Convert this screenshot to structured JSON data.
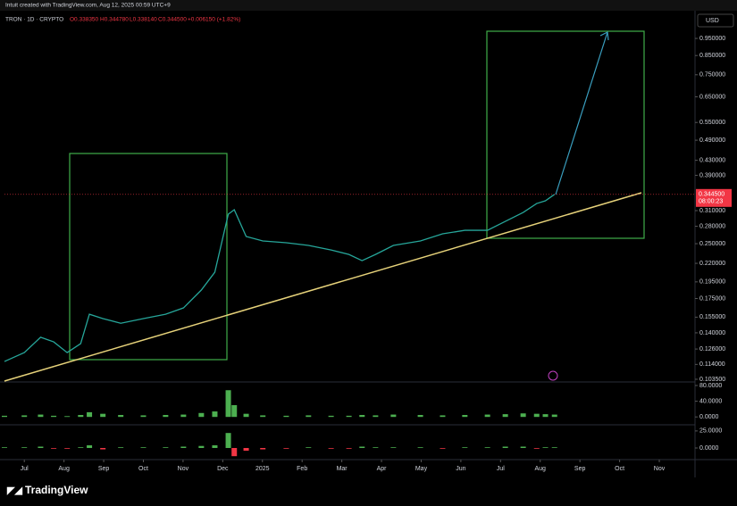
{
  "header": "Intuit created with TradingView.com, Aug 12, 2025 00:59 UTC+9",
  "legend": {
    "symbol": "TRON · 1D · CRYPTO",
    "open": "O0.338350",
    "high": "H0.344780",
    "low": "L0.338140",
    "close": "C0.344500",
    "change": "+0.006150 (+1.82%)"
  },
  "currency": "USD",
  "countdown": "08:00:23",
  "brand": "TradingView",
  "chart_data": [
    {
      "type": "line",
      "color": "#26a69a",
      "log_scale": true,
      "x": [
        -0.5,
        0,
        0.41,
        0.74,
        1.08,
        1.42,
        1.64,
        1.98,
        2.43,
        3.0,
        3.56,
        4.01,
        4.46,
        4.8,
        5.14,
        5.29,
        5.59,
        6.01,
        6.6,
        7.16,
        7.73,
        8.18,
        8.51,
        8.85,
        9.3,
        9.98,
        10.54,
        11.1,
        11.67,
        12.12,
        12.57,
        12.91,
        13.13,
        13.36
      ],
      "values": [
        0.1162,
        0.1231,
        0.136,
        0.132,
        0.1231,
        0.1305,
        0.158,
        0.1536,
        0.149,
        0.1536,
        0.158,
        0.1646,
        0.1849,
        0.2076,
        0.3029,
        0.3118,
        0.262,
        0.2545,
        0.2515,
        0.2472,
        0.24,
        0.2331,
        0.2239,
        0.2331,
        0.2472,
        0.2545,
        0.2665,
        0.2727,
        0.2727,
        0.289,
        0.3063,
        0.3246,
        0.3304,
        0.3445
      ],
      "last_price": {
        "value": 0.3445,
        "label": "0.344500"
      },
      "xlim": [
        -0.5,
        16.9
      ],
      "xticks": [
        {
          "value": 0,
          "label": "Jul"
        },
        {
          "value": 1,
          "label": "Aug"
        },
        {
          "value": 2,
          "label": "Sep"
        },
        {
          "value": 3,
          "label": "Oct"
        },
        {
          "value": 4,
          "label": "Nov"
        },
        {
          "value": 5,
          "label": "Dec"
        },
        {
          "value": 6,
          "label": "2025"
        },
        {
          "value": 7,
          "label": "Feb"
        },
        {
          "value": 8,
          "label": "Mar"
        },
        {
          "value": 9,
          "label": "Apr"
        },
        {
          "value": 10,
          "label": "May"
        },
        {
          "value": 11,
          "label": "Jun"
        },
        {
          "value": 12,
          "label": "Jul"
        },
        {
          "value": 13,
          "label": "Aug"
        },
        {
          "value": 14,
          "label": "Sep"
        },
        {
          "value": 15,
          "label": "Oct"
        },
        {
          "value": 16,
          "label": "Nov"
        }
      ],
      "ylim": [
        0.1017,
        1.118
      ],
      "yticks": [
        {
          "value": 0.95,
          "label": "0.950000"
        },
        {
          "value": 0.85,
          "label": "0.850000"
        },
        {
          "value": 0.75,
          "label": "0.750000"
        },
        {
          "value": 0.65,
          "label": "0.650000"
        },
        {
          "value": 0.55,
          "label": "0.550000"
        },
        {
          "value": 0.49,
          "label": "0.490000"
        },
        {
          "value": 0.43,
          "label": "0.430000"
        },
        {
          "value": 0.39,
          "label": "0.390000"
        },
        {
          "value": 0.31,
          "label": "0.310000"
        },
        {
          "value": 0.28,
          "label": "0.280000"
        },
        {
          "value": 0.25,
          "label": "0.250000"
        },
        {
          "value": 0.22,
          "label": "0.220000"
        },
        {
          "value": 0.195,
          "label": "0.195000"
        },
        {
          "value": 0.175,
          "label": "0.175000"
        },
        {
          "value": 0.155,
          "label": "0.155000"
        },
        {
          "value": 0.14,
          "label": "0.140000"
        },
        {
          "value": 0.126,
          "label": "0.126000"
        },
        {
          "value": 0.114,
          "label": "0.114000"
        },
        {
          "value": 0.1035,
          "label": "0.103500"
        }
      ]
    },
    {
      "type": "bar",
      "up_color": "#4caf50",
      "down_color": "#f23645",
      "x": [
        -0.5,
        0,
        0.41,
        0.74,
        1.08,
        1.42,
        1.64,
        1.98,
        2.43,
        3.0,
        3.56,
        4.01,
        4.46,
        4.8,
        5.14,
        5.29,
        5.59,
        6.01,
        6.6,
        7.16,
        7.73,
        8.18,
        8.51,
        8.85,
        9.3,
        9.98,
        10.54,
        11.1,
        11.67,
        12.12,
        12.57,
        12.91,
        13.13,
        13.36
      ],
      "values": [
        3,
        4,
        6,
        3,
        2,
        5,
        12,
        8,
        5,
        4,
        5,
        6,
        10,
        14,
        68,
        30,
        8,
        4,
        3,
        4,
        3,
        3,
        5,
        4,
        6,
        5,
        4,
        5,
        6,
        7,
        9,
        8,
        7,
        6
      ],
      "xlim": [
        -0.5,
        16.9
      ],
      "ylim": [
        -20,
        89
      ],
      "yticks": [
        {
          "value": 80,
          "label": "80.0000"
        },
        {
          "value": 40,
          "label": "40.0000"
        },
        {
          "value": 0,
          "label": "0.0000"
        }
      ]
    },
    {
      "type": "bar",
      "up_color": "#4caf50",
      "down_color": "#f23645",
      "x": [
        -0.5,
        0,
        0.41,
        0.74,
        1.08,
        1.42,
        1.64,
        1.98,
        2.43,
        3.0,
        3.56,
        4.01,
        4.46,
        4.8,
        5.14,
        5.29,
        5.59,
        6.01,
        6.6,
        7.16,
        7.73,
        8.18,
        8.51,
        8.85,
        9.3,
        9.98,
        10.54,
        11.1,
        11.67,
        12.12,
        12.57,
        12.91,
        13.13,
        13.36
      ],
      "values": [
        1,
        1,
        2,
        -1,
        -1,
        1,
        4,
        -2,
        1,
        1,
        1,
        2,
        3,
        4,
        22,
        -12,
        -4,
        -2,
        -1,
        1,
        -1,
        -1,
        2,
        1,
        1,
        1,
        -1,
        1,
        1,
        2,
        2,
        -1,
        1,
        1
      ],
      "xlim": [
        -0.5,
        16.9
      ],
      "ylim": [
        -17,
        34
      ],
      "yticks": [
        {
          "value": 25,
          "label": "25.0000"
        },
        {
          "value": 0,
          "label": "0.0000"
        }
      ]
    }
  ]
}
